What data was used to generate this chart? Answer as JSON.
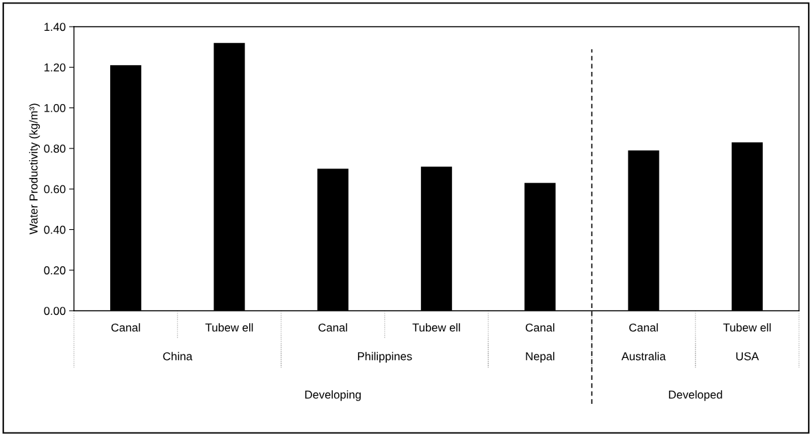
{
  "chart_data": {
    "type": "bar",
    "ylabel": "Water Productivity (kg/m³)",
    "categories": [
      "Canal",
      "Tubew ell",
      "Canal",
      "Tubew ell",
      "Canal",
      "Canal",
      "Tubew ell"
    ],
    "values": [
      1.21,
      1.32,
      0.7,
      0.71,
      0.63,
      0.79,
      0.83
    ],
    "color": "#000000",
    "ylim": [
      0,
      1.4
    ],
    "yticks": [
      {
        "value": 0,
        "label": "0.00"
      },
      {
        "value": 0.2,
        "label": "0.20"
      },
      {
        "value": 0.4,
        "label": "0.40"
      },
      {
        "value": 0.6,
        "label": "0.60"
      },
      {
        "value": 0.8,
        "label": "0.80"
      },
      {
        "value": 1.0,
        "label": "1.00"
      },
      {
        "value": 1.2,
        "label": "1.20"
      },
      {
        "value": 1.4,
        "label": "1.40"
      }
    ],
    "annotations": [
      "China",
      "Philippines",
      "Nepal",
      "Australia",
      "USA",
      "Developing",
      "Developed"
    ],
    "grid": false,
    "legend": false
  }
}
